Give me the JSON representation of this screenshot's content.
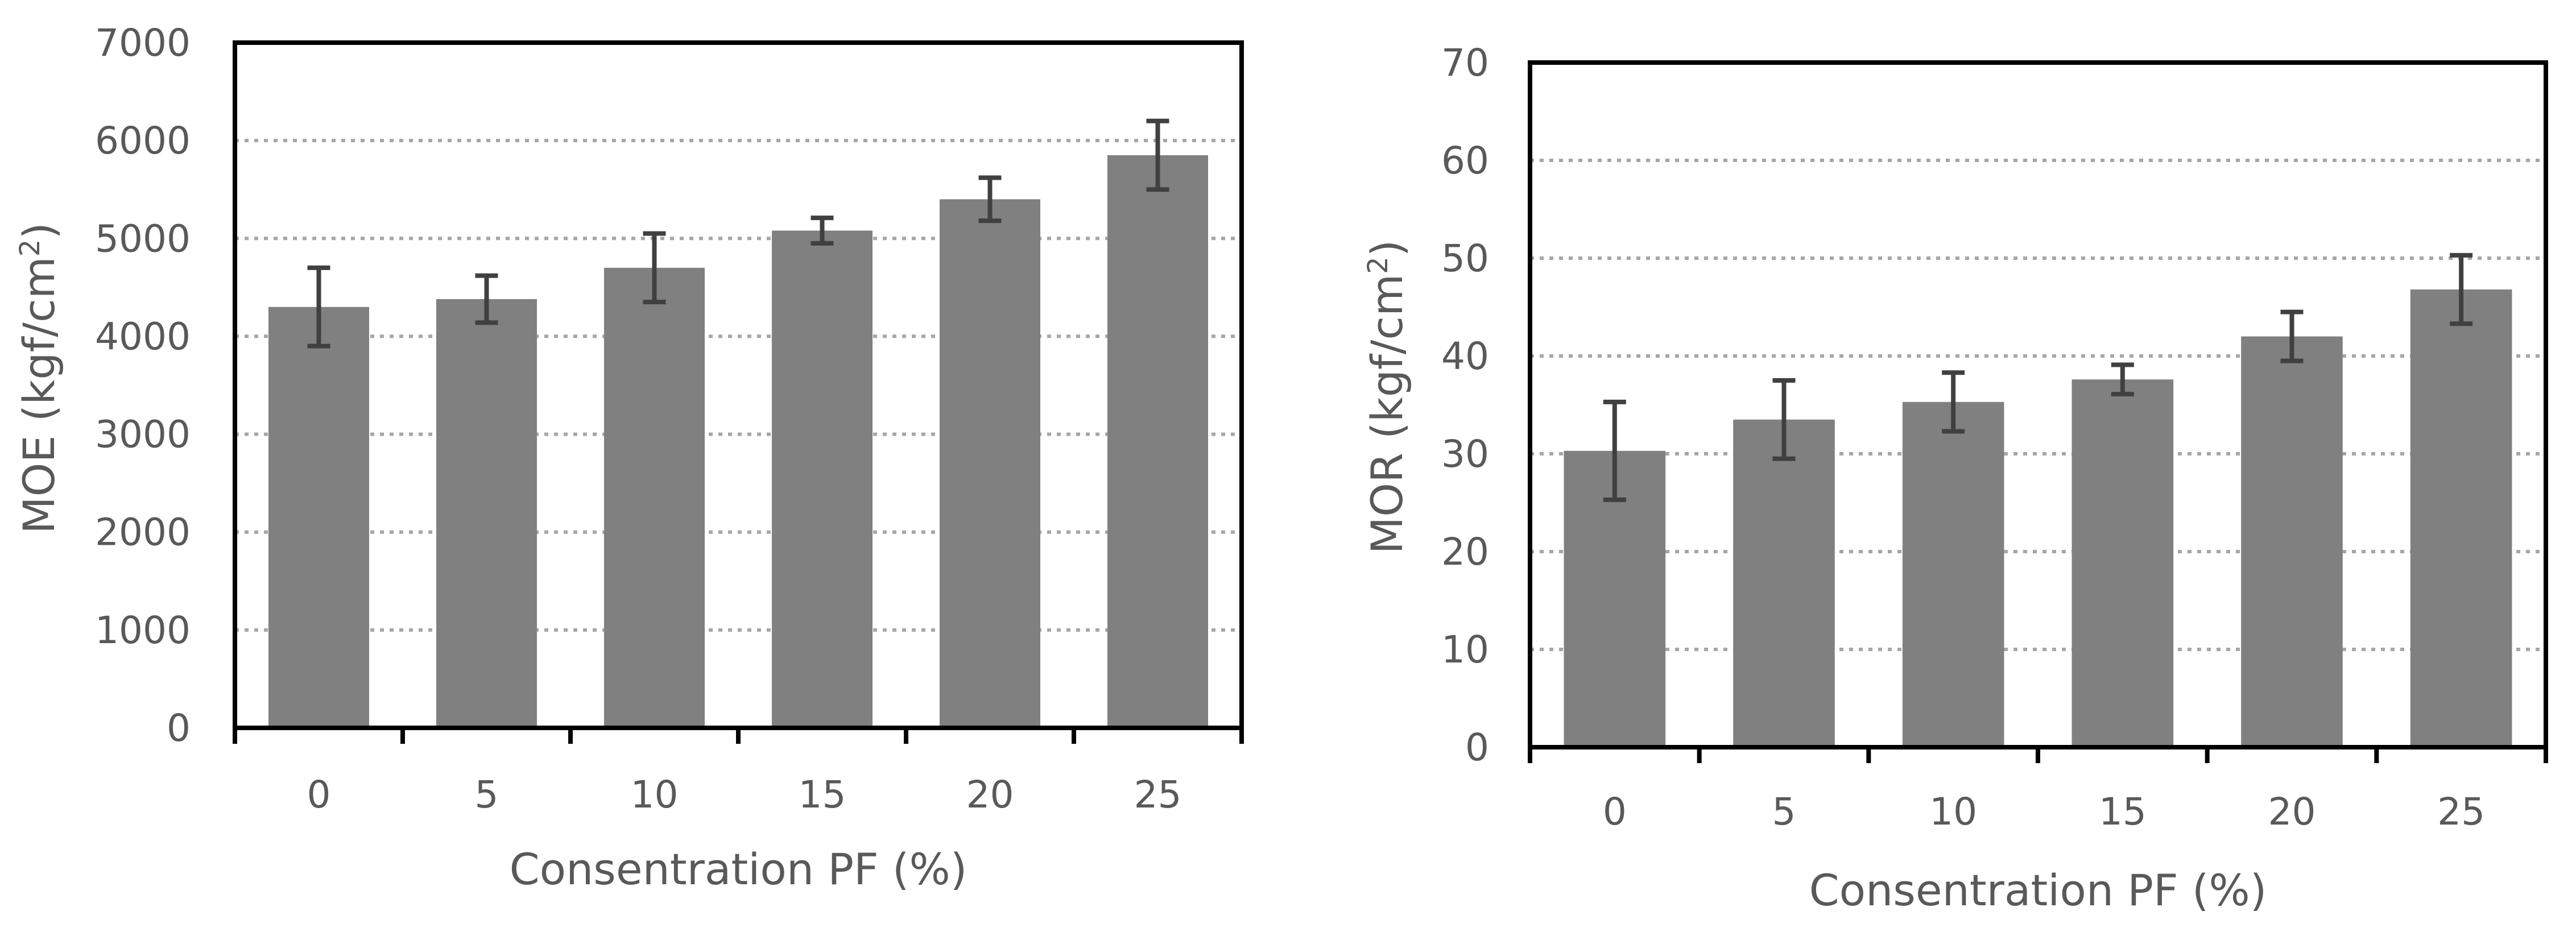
{
  "chart_data": [
    {
      "type": "bar",
      "categories": [
        "0",
        "5",
        "10",
        "15",
        "20",
        "25"
      ],
      "series": [
        {
          "values": [
            4300,
            4380,
            4700,
            5080,
            5400,
            5850
          ],
          "errors": [
            400,
            240,
            350,
            130,
            220,
            350
          ]
        }
      ],
      "ylabel_main": "MOE (kgf/cm",
      "ylabel_sup": "2",
      "ylabel_end": ")",
      "xlabel": "Consentration PF (%)",
      "ylim": [
        0,
        7000
      ],
      "yticks": [
        "0",
        "1000",
        "2000",
        "3000",
        "4000",
        "5000",
        "6000",
        "7000"
      ],
      "grid": "horizontal dotted",
      "colors": {
        "bar": "#808080",
        "error_bar": "#404040",
        "text": "#595959"
      }
    },
    {
      "type": "bar",
      "categories": [
        "0",
        "5",
        "10",
        "15",
        "20",
        "25"
      ],
      "series": [
        {
          "values": [
            30.3,
            33.5,
            35.3,
            37.6,
            42.0,
            46.8
          ],
          "errors": [
            5.0,
            4.0,
            3.0,
            1.5,
            2.5,
            3.5
          ]
        }
      ],
      "ylabel_main": "MOR (kgf/cm",
      "ylabel_sup": "2",
      "ylabel_end": ")",
      "xlabel": "Consentration PF (%)",
      "ylim": [
        0,
        70
      ],
      "yticks": [
        "0",
        "10",
        "20",
        "30",
        "40",
        "50",
        "60",
        "70"
      ],
      "grid": "horizontal dotted",
      "colors": {
        "bar": "#808080",
        "error_bar": "#404040",
        "text": "#595959"
      }
    }
  ]
}
